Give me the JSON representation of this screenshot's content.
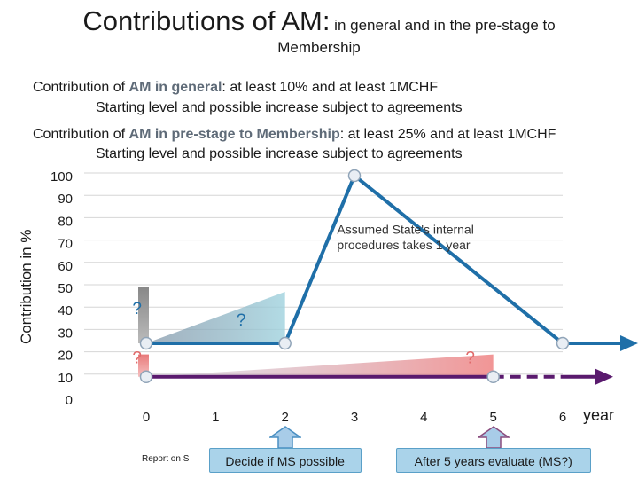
{
  "title": {
    "main": "Contributions of AM:",
    "rest": " in general and in the pre-stage to",
    "line2": "Membership"
  },
  "notes": {
    "general_prefix": "Contribution of ",
    "general_bold": "AM in general",
    "general_suffix": ": at least 10% and at least 1MCHF",
    "general_sub": "Starting level and possible increase subject to agreements",
    "prestage_prefix": "Contribution of ",
    "prestage_bold": "AM in pre-stage to Membership",
    "prestage_suffix": ": at least 25% and at least 1MCHF",
    "prestage_sub": "Starting level and possible increase subject to agreements"
  },
  "chart_data": {
    "type": "line",
    "ylabel": "Contribution in %",
    "xlabel": "year",
    "ylim": [
      0,
      100
    ],
    "xlim": [
      0,
      6
    ],
    "y_ticks": [
      0,
      10,
      20,
      30,
      40,
      50,
      60,
      70,
      80,
      90,
      100
    ],
    "x_ticks": [
      0,
      1,
      2,
      3,
      4,
      5,
      6
    ],
    "grid": true,
    "series": [
      {
        "points": [
          [
            0,
            25
          ],
          [
            2,
            25
          ],
          [
            3,
            100
          ],
          [
            6,
            25
          ]
        ],
        "color": "#1f6fa8",
        "arrow_to": [
          7,
          25
        ]
      },
      {
        "points": [
          [
            0,
            10
          ],
          [
            5,
            10
          ]
        ],
        "color": "#5a1a6e",
        "dashed_to": [
          6,
          10
        ],
        "arrow_to": [
          7,
          10
        ]
      }
    ],
    "annotations": [
      {
        "text": "?",
        "x": -0.2,
        "y": 38
      },
      {
        "text": "?",
        "x": 1.3,
        "y": 33
      },
      {
        "text": "?",
        "x": -0.2,
        "y": 16
      },
      {
        "text": "?",
        "x": 4.6,
        "y": 16
      },
      {
        "text": "Assumed State's internal",
        "x": 2.75,
        "y": 74
      },
      {
        "text": "procedures takes 1 year",
        "x": 2.75,
        "y": 67
      }
    ],
    "callouts": [
      {
        "text": "Decide if MS possible",
        "x": 2
      },
      {
        "text": "After 5 years evaluate (MS?)",
        "x": 5
      }
    ]
  },
  "footer": {
    "left_text": "Report on S"
  },
  "colors": {
    "blue_line": "#1f6fa8",
    "purple_line": "#5a1a6e",
    "question_mark": "#1f6fa8",
    "callout_bg": "#aad3ea",
    "callout_border": "#5aa0c8"
  }
}
